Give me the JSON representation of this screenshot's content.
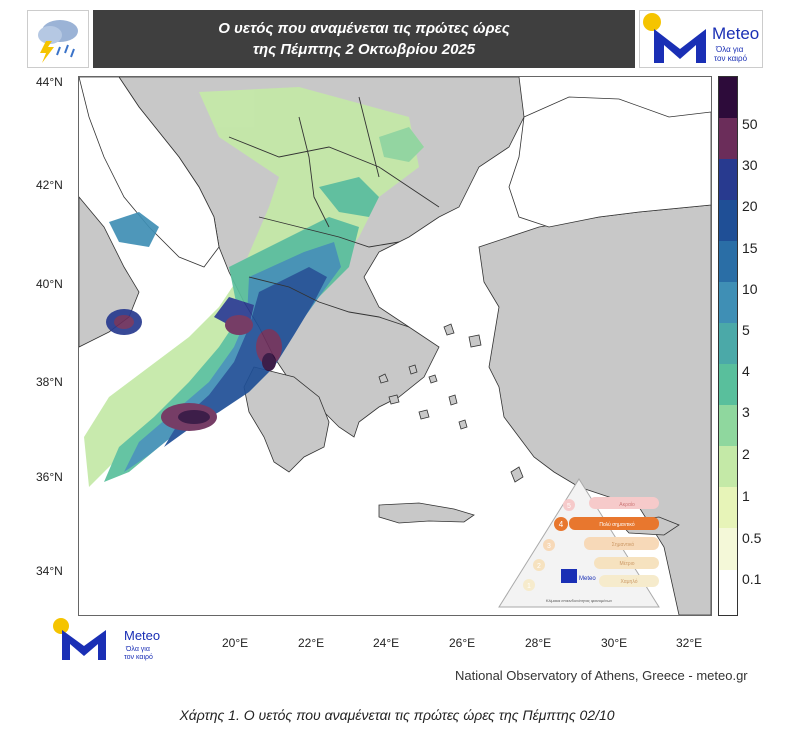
{
  "header": {
    "title_line1": "Ο υετός που αναμένεται τις πρώτες ώρες",
    "title_line2": "της Πέμπτης 2 Οκτωβρίου 2025",
    "logo_text": "Meteo",
    "logo_tagline_1": "Όλα για",
    "logo_tagline_2": "τον καιρό"
  },
  "map": {
    "lat_labels": [
      "44°N",
      "42°N",
      "40°N",
      "38°N",
      "36°N",
      "34°N"
    ],
    "lon_labels": [
      "20°E",
      "22°E",
      "24°E",
      "26°E",
      "28°E",
      "30°E",
      "32°E"
    ],
    "legend_labels": [
      "50",
      "30",
      "20",
      "15",
      "10",
      "5",
      "4",
      "3",
      "2",
      "1",
      "0.5",
      "0.1"
    ],
    "legend_colors": [
      "#2d0b3a",
      "#6b2d5a",
      "#283a8f",
      "#1f4f96",
      "#2a6ea6",
      "#3f8fb5",
      "#4ba9a8",
      "#59bf9c",
      "#8fd79e",
      "#c4e9a7",
      "#e7f4b8",
      "#f4f8d8",
      "#ffffff"
    ],
    "colors": {
      "sea": "#ffffff",
      "land": "#c8c8c8",
      "border": "#333333"
    }
  },
  "danger_scale": {
    "numbers": [
      "5",
      "4",
      "3",
      "2",
      "1"
    ],
    "labels": [
      "Ακραίο",
      "Πολύ σημαντικό",
      "Σημαντικό",
      "Μέτριο",
      "Χαμηλό"
    ],
    "footer": "Κλίμακα επικινδυνότητας φαινομένων",
    "logo_text": "Meteo"
  },
  "footer": {
    "credit": "National Observatory of Athens, Greece - meteo.gr",
    "caption": "Χάρτης 1. Ο υετός που αναμένεται τις πρώτες ώρες της Πέμπτης 02/10",
    "logo_text": "Meteo",
    "logo_tagline_1": "Όλα για",
    "logo_tagline_2": "τον καιρό"
  }
}
